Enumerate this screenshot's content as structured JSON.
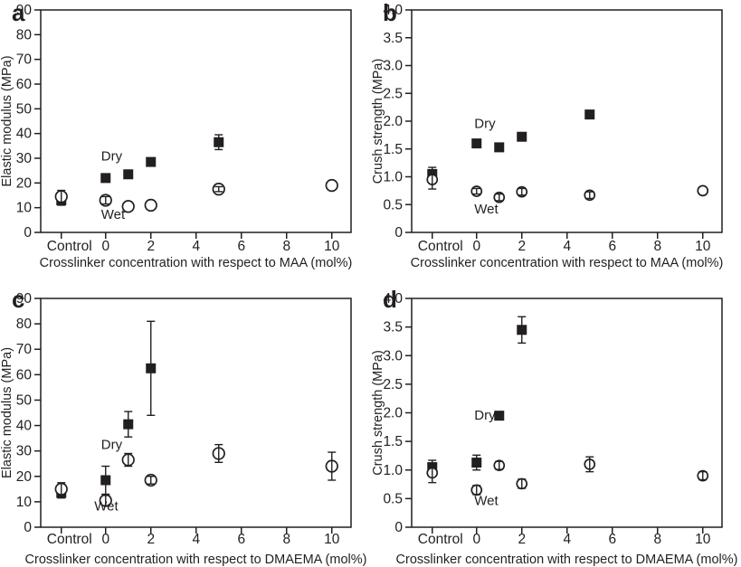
{
  "figure": {
    "background": "#ffffff",
    "ink": "#231f20",
    "panel_letters": [
      "a",
      "b",
      "c",
      "d"
    ]
  },
  "chart_data": [
    {
      "panel": "a",
      "type": "scatter",
      "title": "",
      "xlabel": "Crosslinker concentration with respect to MAA (mol%)",
      "ylabel": "Elastic modulus (MPa)",
      "xlim": [
        -2.87,
        10.85
      ],
      "ylim": [
        0,
        90
      ],
      "control_x": -1.96,
      "xticks": [
        {
          "label": "Control",
          "x": -1.96
        },
        {
          "label": "0",
          "x": 0
        },
        {
          "label": "2",
          "x": 2
        },
        {
          "label": "4",
          "x": 4
        },
        {
          "label": "6",
          "x": 6
        },
        {
          "label": "8",
          "x": 8
        },
        {
          "label": "10",
          "x": 10
        }
      ],
      "ytick_step": 10,
      "ytick_decimals": 0,
      "grid": false,
      "legend": "in-plot-text",
      "series": [
        {
          "name": "Dry",
          "marker": "filled-square",
          "size": 11,
          "points": [
            [
              "Control",
              13,
              2
            ],
            [
              0,
              22,
              0
            ],
            [
              1,
              23.5,
              0
            ],
            [
              2,
              28.5,
              0
            ],
            [
              5,
              36.5,
              3
            ]
          ]
        },
        {
          "name": "Wet",
          "marker": "open-circle",
          "radius": 6.3,
          "points": [
            [
              "Control",
              14.5,
              2.5
            ],
            [
              0,
              13,
              1.5
            ],
            [
              1,
              10.5,
              0
            ],
            [
              2,
              11,
              0
            ],
            [
              5,
              17.5,
              1
            ],
            [
              10,
              19,
              0
            ]
          ]
        }
      ],
      "annotations": [
        {
          "text": "Dry",
          "x": -0.2,
          "y": 31
        },
        {
          "text": "Wet",
          "x": -0.2,
          "y": 7.3
        }
      ]
    },
    {
      "panel": "b",
      "type": "scatter",
      "title": "",
      "xlabel": "Crosslinker concentration with respect to MAA (mol%)",
      "ylabel": "Crush strength (MPa)",
      "xlim": [
        -2.87,
        10.85
      ],
      "ylim": [
        0,
        4
      ],
      "control_x": -1.96,
      "xticks": [
        {
          "label": "Control",
          "x": -1.96
        },
        {
          "label": "0",
          "x": 0
        },
        {
          "label": "2",
          "x": 2
        },
        {
          "label": "4",
          "x": 4
        },
        {
          "label": "6",
          "x": 6
        },
        {
          "label": "8",
          "x": 8
        },
        {
          "label": "10",
          "x": 10
        }
      ],
      "ytick_step": 0.5,
      "ytick_decimals": 1,
      "grid": false,
      "legend": "in-plot-text",
      "series": [
        {
          "name": "Dry",
          "marker": "filled-square",
          "size": 11,
          "points": [
            [
              "Control",
              1.05,
              0.12
            ],
            [
              0,
              1.6,
              0
            ],
            [
              1,
              1.53,
              0
            ],
            [
              2,
              1.72,
              0
            ],
            [
              5,
              2.12,
              0
            ]
          ]
        },
        {
          "name": "Wet",
          "marker": "open-circle",
          "radius": 5.5,
          "points": [
            [
              "Control",
              0.95,
              0.17
            ],
            [
              0,
              0.74,
              0.05
            ],
            [
              1,
              0.63,
              0.06
            ],
            [
              2,
              0.73,
              0.06
            ],
            [
              5,
              0.67,
              0.06
            ],
            [
              10,
              0.75,
              0
            ]
          ]
        }
      ],
      "annotations": [
        {
          "text": "Dry",
          "x": -0.1,
          "y": 1.96
        },
        {
          "text": "Wet",
          "x": -0.1,
          "y": 0.42
        }
      ]
    },
    {
      "panel": "c",
      "type": "scatter",
      "title": "",
      "xlabel": "Crosslinker concentration with respect to DMAEMA (mol%)",
      "ylabel": "Elastic modulus (MPa)",
      "xlim": [
        -2.87,
        10.85
      ],
      "ylim": [
        0,
        90
      ],
      "control_x": -1.96,
      "xticks": [
        {
          "label": "Control",
          "x": -1.96
        },
        {
          "label": "0",
          "x": 0
        },
        {
          "label": "2",
          "x": 2
        },
        {
          "label": "4",
          "x": 4
        },
        {
          "label": "6",
          "x": 6
        },
        {
          "label": "8",
          "x": 8
        },
        {
          "label": "10",
          "x": 10
        }
      ],
      "ytick_step": 10,
      "ytick_decimals": 0,
      "grid": false,
      "legend": "in-plot-text",
      "series": [
        {
          "name": "Dry",
          "marker": "filled-square",
          "size": 11,
          "points": [
            [
              "Control",
              13.5,
              2
            ],
            [
              0,
              18.5,
              5.5
            ],
            [
              1,
              40.5,
              5
            ],
            [
              2,
              62.5,
              18.5
            ]
          ]
        },
        {
          "name": "Wet",
          "marker": "open-circle",
          "radius": 6.3,
          "points": [
            [
              "Control",
              15,
              2.5
            ],
            [
              0,
              10.5,
              2
            ],
            [
              1,
              26.5,
              2.5
            ],
            [
              2,
              18.5,
              1.5
            ],
            [
              5,
              29,
              3.5
            ],
            [
              10,
              24,
              5.5
            ]
          ]
        }
      ],
      "annotations": [
        {
          "text": "Dry",
          "x": -0.2,
          "y": 32.5
        },
        {
          "text": "Wet",
          "x": -0.5,
          "y": 8.3
        }
      ]
    },
    {
      "panel": "d",
      "type": "scatter",
      "title": "",
      "xlabel": "Crosslinker concentration with respect to DMAEMA (mol%)",
      "ylabel": "Crush strength (MPa)",
      "xlim": [
        -2.87,
        10.85
      ],
      "ylim": [
        0,
        4
      ],
      "control_x": -1.96,
      "xticks": [
        {
          "label": "Control",
          "x": -1.96
        },
        {
          "label": "0",
          "x": 0
        },
        {
          "label": "2",
          "x": 2
        },
        {
          "label": "4",
          "x": 4
        },
        {
          "label": "6",
          "x": 6
        },
        {
          "label": "8",
          "x": 8
        },
        {
          "label": "10",
          "x": 10
        }
      ],
      "ytick_step": 0.5,
      "ytick_decimals": 1,
      "grid": false,
      "legend": "in-plot-text",
      "series": [
        {
          "name": "Dry",
          "marker": "filled-square",
          "size": 11,
          "points": [
            [
              "Control",
              1.05,
              0.12
            ],
            [
              0,
              1.13,
              0.13
            ],
            [
              1,
              1.95,
              0
            ],
            [
              2,
              3.45,
              0.23
            ]
          ]
        },
        {
          "name": "Wet",
          "marker": "open-circle",
          "radius": 5.5,
          "points": [
            [
              "Control",
              0.95,
              0.17
            ],
            [
              0,
              0.65,
              0.08
            ],
            [
              1,
              1.08,
              0.07
            ],
            [
              2,
              0.76,
              0.08
            ],
            [
              5,
              1.1,
              0.13
            ],
            [
              10,
              0.9,
              0.07
            ]
          ]
        }
      ],
      "annotations": [
        {
          "text": "Dry",
          "x": -0.1,
          "y": 1.96
        },
        {
          "text": "Wet",
          "x": -0.1,
          "y": 0.47
        }
      ]
    }
  ]
}
